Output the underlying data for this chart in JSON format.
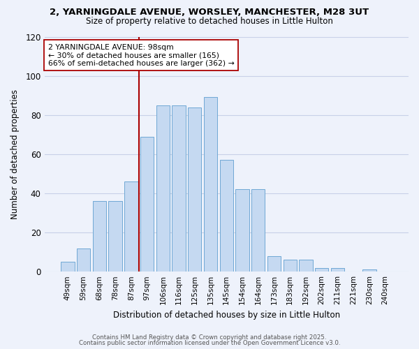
{
  "title_line1": "2, YARNINGDALE AVENUE, WORSLEY, MANCHESTER, M28 3UT",
  "title_line2": "Size of property relative to detached houses in Little Hulton",
  "xlabel": "Distribution of detached houses by size in Little Hulton",
  "ylabel": "Number of detached properties",
  "categories": [
    "49sqm",
    "59sqm",
    "68sqm",
    "78sqm",
    "87sqm",
    "97sqm",
    "106sqm",
    "116sqm",
    "125sqm",
    "135sqm",
    "145sqm",
    "154sqm",
    "164sqm",
    "173sqm",
    "183sqm",
    "192sqm",
    "202sqm",
    "211sqm",
    "221sqm",
    "230sqm",
    "240sqm"
  ],
  "heights": [
    5,
    12,
    36,
    36,
    46,
    69,
    85,
    85,
    84,
    89,
    57,
    42,
    42,
    8,
    6,
    6,
    2,
    2,
    0,
    1,
    0
  ],
  "bar_color": "#c5d9f1",
  "bar_edge_color": "#6fa8d4",
  "vline_color": "#aa0000",
  "annotation_text": "2 YARNINGDALE AVENUE: 98sqm\n← 30% of detached houses are smaller (165)\n66% of semi-detached houses are larger (362) →",
  "annotation_box_color": "#ffffff",
  "annotation_box_edge": "#aa0000",
  "ylim": [
    0,
    120
  ],
  "yticks": [
    0,
    20,
    40,
    60,
    80,
    100,
    120
  ],
  "footer_line1": "Contains HM Land Registry data © Crown copyright and database right 2025.",
  "footer_line2": "Contains public sector information licensed under the Open Government Licence v3.0.",
  "bg_color": "#eef2fb",
  "plot_bg_color": "#eef2fb",
  "grid_color": "#c8d0e8"
}
